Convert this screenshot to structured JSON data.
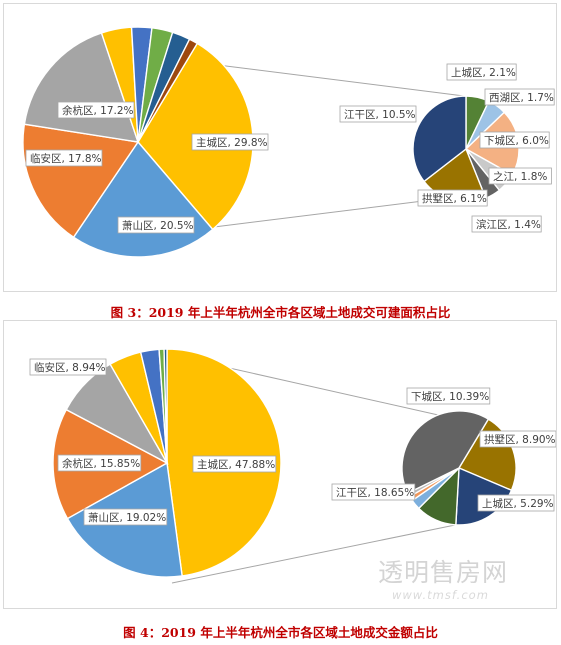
{
  "chart_data": [
    {
      "type": "pie",
      "subtype": "pie-of-pie",
      "caption": "图 3：2019 年上半年杭州全市各区域土地成交可建面积占比",
      "main_slices": [
        {
          "name": "主城区",
          "value": 29.8,
          "label": "主城区, 29.8%",
          "color": "#ffc000"
        },
        {
          "name": "萧山区",
          "value": 20.5,
          "label": "萧山区, 20.5%",
          "color": "#5b9bd5"
        },
        {
          "name": "临安区",
          "value": 17.8,
          "label": "临安区, 17.8%",
          "color": "#ed7d31"
        },
        {
          "name": "余杭区",
          "value": 17.2,
          "label": "余杭区, 17.2%",
          "color": "#a5a5a5"
        },
        {
          "name": "",
          "value": 4.2,
          "label": "",
          "color": "#ffc000"
        },
        {
          "name": "",
          "value": 2.8,
          "label": "",
          "color": "#4472c4"
        },
        {
          "name": "",
          "value": 2.9,
          "label": "",
          "color": "#70ad47"
        },
        {
          "name": "",
          "value": 2.5,
          "label": "",
          "color": "#255e91"
        },
        {
          "name": "",
          "value": 1.2,
          "label": "",
          "color": "#9e480e"
        }
      ],
      "secondary_slices": [
        {
          "name": "上城区",
          "value": 2.1,
          "label": "上城区, 2.1%",
          "color": "#548235"
        },
        {
          "name": "西湖区",
          "value": 1.7,
          "label": "西湖区, 1.7%",
          "color": "#9dc3e6"
        },
        {
          "name": "下城区",
          "value": 6.0,
          "label": "下城区, 6.0%",
          "color": "#f4b183"
        },
        {
          "name": "之江",
          "value": 1.8,
          "label": "之江, 1.8%",
          "color": "#c9c9c9"
        },
        {
          "name": "滨江区",
          "value": 1.4,
          "label": "滨江区, 1.4%",
          "color": "#636363"
        },
        {
          "name": "拱墅区",
          "value": 6.1,
          "label": "拱墅区, 6.1%",
          "color": "#997300"
        },
        {
          "name": "江干区",
          "value": 10.5,
          "label": "江干区, 10.5%",
          "color": "#264478"
        }
      ]
    },
    {
      "type": "pie",
      "subtype": "pie-of-pie",
      "caption": "图 4：2019 年上半年杭州全市各区域土地成交金额占比",
      "main_slices": [
        {
          "name": "主城区",
          "value": 47.88,
          "label": "主城区, 47.88%",
          "color": "#ffc000"
        },
        {
          "name": "萧山区",
          "value": 19.02,
          "label": "萧山区, 19.02%",
          "color": "#5b9bd5"
        },
        {
          "name": "余杭区",
          "value": 15.85,
          "label": "余杭区, 15.85%",
          "color": "#ed7d31"
        },
        {
          "name": "临安区",
          "value": 8.94,
          "label": "临安区, 8.94%",
          "color": "#a5a5a5"
        },
        {
          "name": "",
          "value": 4.6,
          "label": "",
          "color": "#ffc000"
        },
        {
          "name": "",
          "value": 2.6,
          "label": "",
          "color": "#4472c4"
        },
        {
          "name": "",
          "value": 0.7,
          "label": "",
          "color": "#70ad47"
        },
        {
          "name": "",
          "value": 0.41,
          "label": "",
          "color": "#255e91"
        }
      ],
      "secondary_slices": [
        {
          "name": "下城区",
          "value": 10.39,
          "label": "下城区, 10.39%",
          "color": "#997300"
        },
        {
          "name": "拱墅区",
          "value": 8.9,
          "label": "拱墅区, 8.90%",
          "color": "#264478"
        },
        {
          "name": "上城区",
          "value": 5.29,
          "label": "上城区, 5.29%",
          "color": "#43682b"
        },
        {
          "name": "",
          "value": 1.3,
          "label": "",
          "color": "#7cafdd"
        },
        {
          "name": "",
          "value": 0.6,
          "label": "",
          "color": "#f1975a"
        },
        {
          "name": "",
          "value": 0.5,
          "label": "",
          "color": "#b7b7b7"
        },
        {
          "name": "江干区",
          "value": 18.65,
          "label": "江干区, 18.65%",
          "color": "#636363"
        }
      ]
    }
  ],
  "watermark": {
    "text": "透明售房网",
    "url": "www.tmsf.com"
  }
}
